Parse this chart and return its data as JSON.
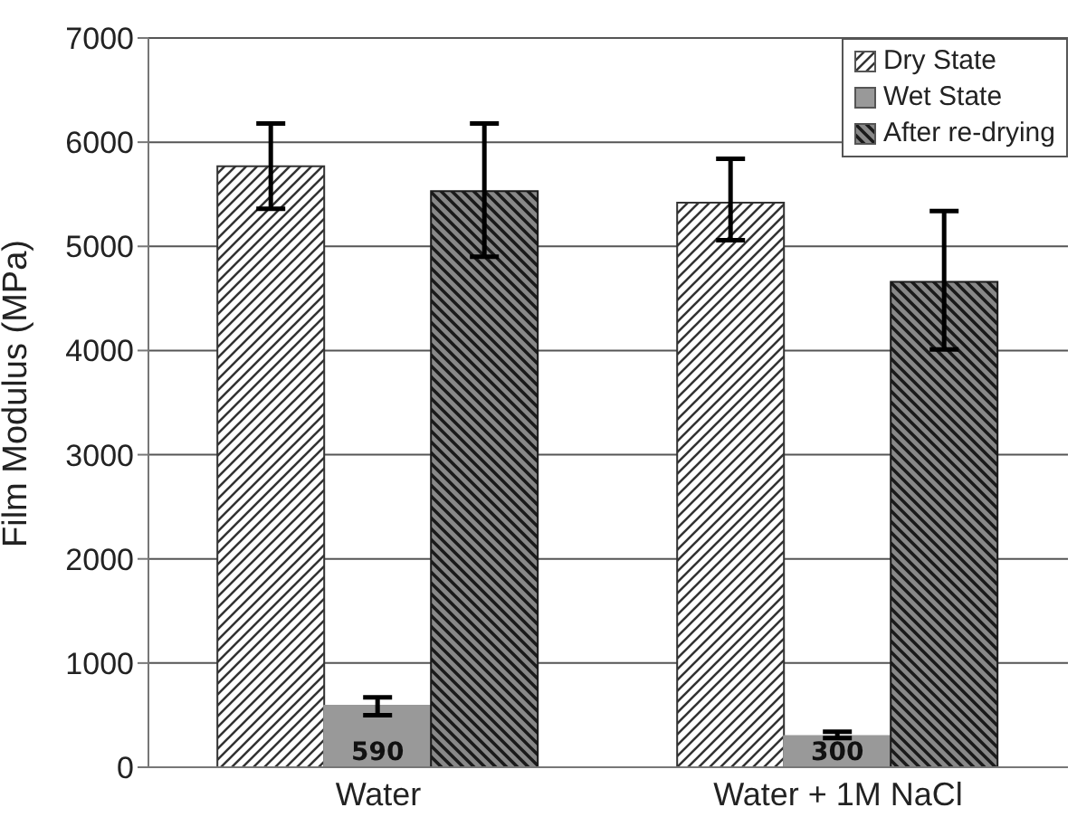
{
  "chart_data": {
    "type": "bar",
    "ylabel": "Film Modulus (MPa)",
    "categories": [
      "Water",
      "Water + 1M NaCl"
    ],
    "series": [
      {
        "name": "Dry State",
        "color": "#333333",
        "values": [
          5770,
          5420
        ],
        "errors": [
          [
            5360,
            6180
          ],
          [
            5060,
            5840
          ]
        ]
      },
      {
        "name": "Wet State",
        "color": "#999999",
        "values": [
          590,
          300
        ],
        "errors": [
          [
            500,
            670
          ],
          [
            280,
            340
          ]
        ],
        "value_labels": [
          "590",
          "300"
        ]
      },
      {
        "name": "After re-drying",
        "color": "#1a1a1a",
        "values": [
          5530,
          4660
        ],
        "errors": [
          [
            4900,
            6180
          ],
          [
            4010,
            5340
          ]
        ]
      }
    ],
    "ylim": [
      0,
      7000
    ],
    "yticks": [
      0,
      1000,
      2000,
      3000,
      4000,
      5000,
      6000,
      7000
    ],
    "grid": "y",
    "legend": "top right"
  }
}
